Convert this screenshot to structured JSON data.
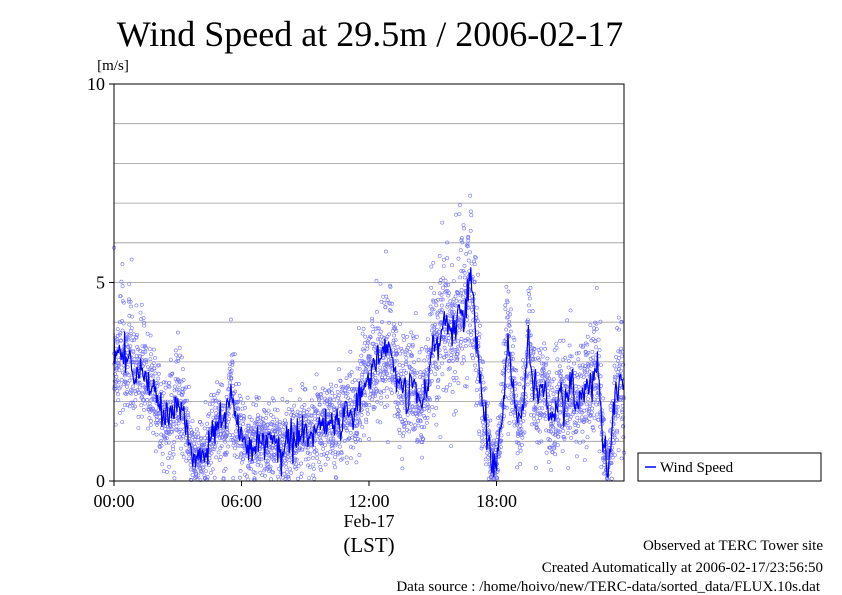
{
  "chart_data": {
    "type": "scatter",
    "title": "Wind Speed at 29.5m / 2006-02-17",
    "ylabel": "[m/s]",
    "xlabel": "(LST)",
    "x_date_label": "Feb-17",
    "ylim": [
      0,
      10
    ],
    "y_ticks": [
      "0",
      "5",
      "10"
    ],
    "y_grid_values": [
      1,
      2,
      3,
      4,
      5,
      6,
      7,
      8,
      9
    ],
    "x_range_hours": [
      0,
      24
    ],
    "x_ticks": [
      {
        "hour": 0,
        "label": "00:00"
      },
      {
        "hour": 6,
        "label": "06:00"
      },
      {
        "hour": 12,
        "label": "12:00"
      },
      {
        "hour": 18,
        "label": "18:00"
      }
    ],
    "grid": true,
    "legend_position": "right",
    "series": [
      {
        "name": "Wind Speed",
        "color": "#0000ff",
        "marker_color": "#7070ff",
        "smoothed_line": [
          [
            0.0,
            2.9
          ],
          [
            0.25,
            3.3
          ],
          [
            0.5,
            3.0
          ],
          [
            0.75,
            3.2
          ],
          [
            1.0,
            2.6
          ],
          [
            1.25,
            2.8
          ],
          [
            1.5,
            2.5
          ],
          [
            1.75,
            2.4
          ],
          [
            2.0,
            2.2
          ],
          [
            2.25,
            1.5
          ],
          [
            2.5,
            1.6
          ],
          [
            2.75,
            1.7
          ],
          [
            3.0,
            2.0
          ],
          [
            3.25,
            1.8
          ],
          [
            3.5,
            1.1
          ],
          [
            3.75,
            0.6
          ],
          [
            4.0,
            0.7
          ],
          [
            4.25,
            0.6
          ],
          [
            4.5,
            1.0
          ],
          [
            4.75,
            1.3
          ],
          [
            5.0,
            1.6
          ],
          [
            5.25,
            1.2
          ],
          [
            5.5,
            2.5
          ],
          [
            5.75,
            1.6
          ],
          [
            6.0,
            1.2
          ],
          [
            6.25,
            1.0
          ],
          [
            6.5,
            0.8
          ],
          [
            6.75,
            1.1
          ],
          [
            7.0,
            1.0
          ],
          [
            7.25,
            0.9
          ],
          [
            7.5,
            1.3
          ],
          [
            7.75,
            0.8
          ],
          [
            8.0,
            0.9
          ],
          [
            8.25,
            1.2
          ],
          [
            8.5,
            1.0
          ],
          [
            8.75,
            1.2
          ],
          [
            9.0,
            1.3
          ],
          [
            9.25,
            1.0
          ],
          [
            9.5,
            1.4
          ],
          [
            9.75,
            1.3
          ],
          [
            10.0,
            1.5
          ],
          [
            10.25,
            1.3
          ],
          [
            10.5,
            1.6
          ],
          [
            10.75,
            1.5
          ],
          [
            11.0,
            1.8
          ],
          [
            11.25,
            1.7
          ],
          [
            11.5,
            2.0
          ],
          [
            11.75,
            2.4
          ],
          [
            12.0,
            2.6
          ],
          [
            12.25,
            2.9
          ],
          [
            12.5,
            3.0
          ],
          [
            12.75,
            3.3
          ],
          [
            13.0,
            3.2
          ],
          [
            13.25,
            2.6
          ],
          [
            13.5,
            2.3
          ],
          [
            13.75,
            2.1
          ],
          [
            14.0,
            2.7
          ],
          [
            14.25,
            2.3
          ],
          [
            14.5,
            1.9
          ],
          [
            14.75,
            2.2
          ],
          [
            15.0,
            3.7
          ],
          [
            15.25,
            3.5
          ],
          [
            15.5,
            4.0
          ],
          [
            15.75,
            3.8
          ],
          [
            16.0,
            3.6
          ],
          [
            16.25,
            4.6
          ],
          [
            16.5,
            4.2
          ],
          [
            16.75,
            5.4
          ],
          [
            17.0,
            4.0
          ],
          [
            17.25,
            2.3
          ],
          [
            17.5,
            1.5
          ],
          [
            17.75,
            0.4
          ],
          [
            18.0,
            0.5
          ],
          [
            18.25,
            1.6
          ],
          [
            18.5,
            3.5
          ],
          [
            18.75,
            2.6
          ],
          [
            19.0,
            1.3
          ],
          [
            19.25,
            1.9
          ],
          [
            19.5,
            3.6
          ],
          [
            19.75,
            2.5
          ],
          [
            20.0,
            2.2
          ],
          [
            20.25,
            2.6
          ],
          [
            20.5,
            1.6
          ],
          [
            20.75,
            1.7
          ],
          [
            21.0,
            2.3
          ],
          [
            21.25,
            2.0
          ],
          [
            21.5,
            2.5
          ],
          [
            21.75,
            1.9
          ],
          [
            22.0,
            2.2
          ],
          [
            22.25,
            2.3
          ],
          [
            22.5,
            2.4
          ],
          [
            22.75,
            3.0
          ],
          [
            23.0,
            1.2
          ],
          [
            23.25,
            0.2
          ],
          [
            23.5,
            1.8
          ],
          [
            23.75,
            2.6
          ],
          [
            24.0,
            2.4
          ]
        ]
      }
    ]
  },
  "footer": {
    "observed": "Observed at TERC Tower site",
    "created": "Created Automatically at 2006-02-17/23:56:50",
    "source": "Data source : /home/hoivo/new/TERC-data/sorted_data/FLUX.10s.dat"
  }
}
